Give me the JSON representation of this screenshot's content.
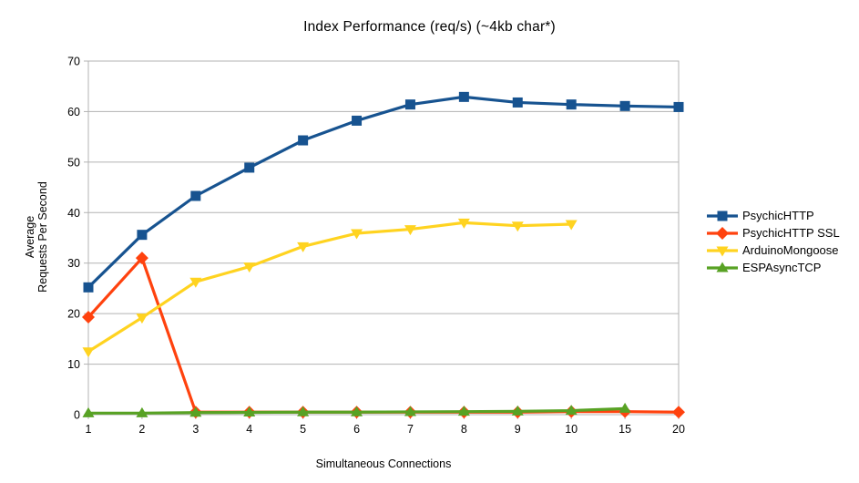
{
  "title": "Index Performance (req/s) (~4kb char*)",
  "chart_data": {
    "type": "line",
    "title": "Index Performance (req/s) (~4kb char*)",
    "xlabel": "Simultaneous Connections",
    "ylabel": "Average Requests Per Second",
    "ylabel_lines": [
      "Average",
      "Requests Per Second"
    ],
    "categories": [
      "1",
      "2",
      "3",
      "4",
      "5",
      "6",
      "7",
      "8",
      "9",
      "10",
      "15",
      "20"
    ],
    "y_ticks": [
      0,
      10,
      20,
      30,
      40,
      50,
      60,
      70
    ],
    "ylim": [
      0,
      70
    ],
    "grid": "horizontal",
    "legend_position": "right",
    "series": [
      {
        "name": "PsychicHTTP",
        "color": "#175390",
        "marker": "square",
        "values": [
          25.2,
          35.6,
          43.3,
          48.9,
          54.3,
          58.2,
          61.4,
          62.9,
          61.8,
          61.4,
          61.1,
          60.9
        ]
      },
      {
        "name": "PsychicHTTP SSL",
        "color": "#FF420E",
        "marker": "diamond",
        "values": [
          19.3,
          31.0,
          0.5,
          0.5,
          0.5,
          0.5,
          0.5,
          0.5,
          0.5,
          0.6,
          0.6,
          0.5
        ]
      },
      {
        "name": "ArduinoMongoose",
        "color": "#FFD320",
        "marker": "triangle-down",
        "values": [
          12.5,
          19.2,
          26.3,
          29.3,
          33.3,
          35.9,
          36.7,
          38.0,
          37.4,
          37.7,
          null,
          null
        ]
      },
      {
        "name": "ESPAsyncTCP",
        "color": "#58A224",
        "marker": "triangle-up",
        "values": [
          0.3,
          0.3,
          0.4,
          0.45,
          0.5,
          0.5,
          0.55,
          0.6,
          0.65,
          0.8,
          1.2,
          null
        ]
      }
    ]
  },
  "colors": {
    "gridline": "#b3b3b3",
    "axis": "#b3b3b3",
    "text": "#000000",
    "background": "#ffffff"
  }
}
